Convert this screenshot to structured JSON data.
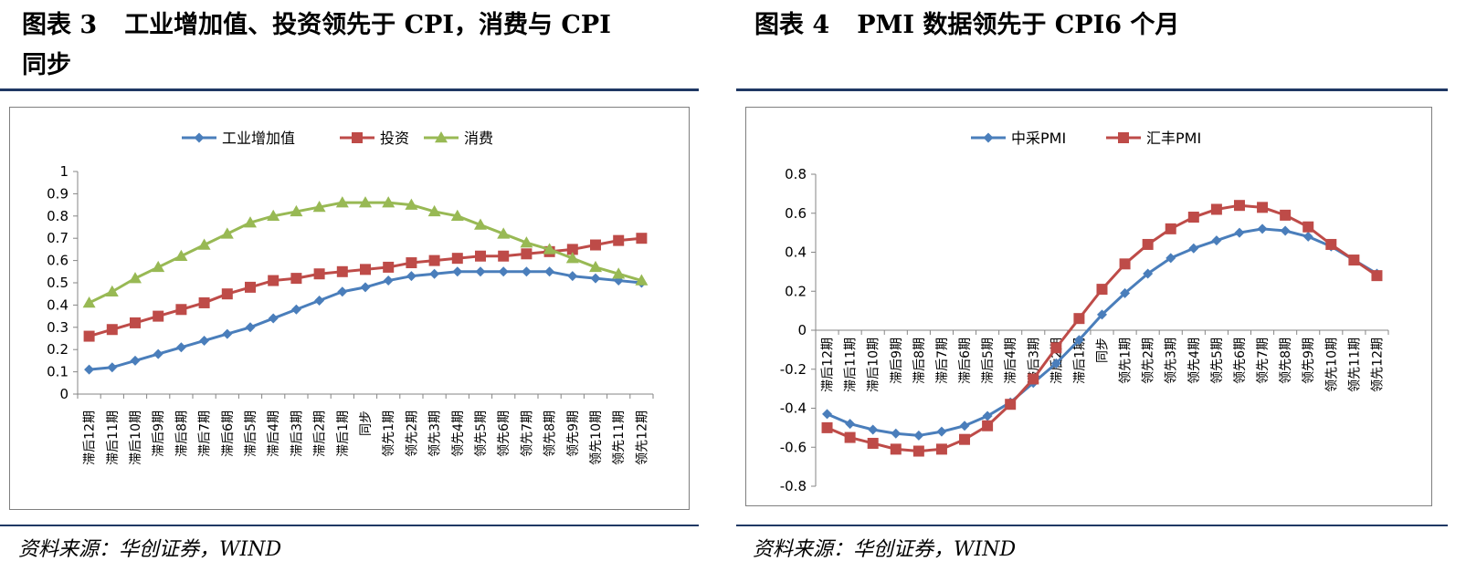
{
  "figures": [
    {
      "number": "图表 3",
      "title": "工业增加值、投资领先于 CPI，消费与 CPI",
      "title_line2": "同步",
      "source": "资料来源：华创证券，WIND"
    },
    {
      "number": "图表 4",
      "title": "PMI 数据领先于 CPI6 个月",
      "source": "资料来源：华创证券，WIND"
    }
  ],
  "chart_data": [
    {
      "type": "line",
      "categories": [
        "滞后12期",
        "滞后11期",
        "滞后10期",
        "滞后9期",
        "滞后8期",
        "滞后7期",
        "滞后6期",
        "滞后5期",
        "滞后4期",
        "滞后3期",
        "滞后2期",
        "滞后1期",
        "同步",
        "领先1期",
        "领先2期",
        "领先3期",
        "领先4期",
        "领先5期",
        "领先6期",
        "领先7期",
        "领先8期",
        "领先9期",
        "领先10期",
        "领先11期",
        "领先12期"
      ],
      "series": [
        {
          "name": "工业增加值",
          "color": "#4a7ebb",
          "marker": "diamond",
          "values": [
            0.11,
            0.12,
            0.15,
            0.18,
            0.21,
            0.24,
            0.27,
            0.3,
            0.34,
            0.38,
            0.42,
            0.46,
            0.48,
            0.51,
            0.53,
            0.54,
            0.55,
            0.55,
            0.55,
            0.55,
            0.55,
            0.53,
            0.52,
            0.51,
            0.5
          ]
        },
        {
          "name": "投资",
          "color": "#be4b48",
          "marker": "square",
          "values": [
            0.26,
            0.29,
            0.32,
            0.35,
            0.38,
            0.41,
            0.45,
            0.48,
            0.51,
            0.52,
            0.54,
            0.55,
            0.56,
            0.57,
            0.59,
            0.6,
            0.61,
            0.62,
            0.62,
            0.63,
            0.64,
            0.65,
            0.67,
            0.69,
            0.7
          ]
        },
        {
          "name": "消费",
          "color": "#98b954",
          "marker": "triangle",
          "values": [
            0.41,
            0.46,
            0.52,
            0.57,
            0.62,
            0.67,
            0.72,
            0.77,
            0.8,
            0.82,
            0.84,
            0.86,
            0.86,
            0.86,
            0.85,
            0.82,
            0.8,
            0.76,
            0.72,
            0.68,
            0.65,
            0.61,
            0.57,
            0.54,
            0.51
          ]
        }
      ],
      "ylim": [
        0,
        1
      ],
      "yticks": [
        "0",
        "0.1",
        "0.2",
        "0.3",
        "0.4",
        "0.5",
        "0.6",
        "0.7",
        "0.8",
        "0.9",
        "1"
      ],
      "legend": "top"
    },
    {
      "type": "line",
      "categories": [
        "滞后12期",
        "滞后11期",
        "滞后10期",
        "滞后9期",
        "滞后8期",
        "滞后7期",
        "滞后6期",
        "滞后5期",
        "滞后4期",
        "滞后3期",
        "滞后2期",
        "滞后1期",
        "同步",
        "领先1期",
        "领先2期",
        "领先3期",
        "领先4期",
        "领先5期",
        "领先6期",
        "领先7期",
        "领先8期",
        "领先9期",
        "领先10期",
        "领先11期",
        "领先12期"
      ],
      "series": [
        {
          "name": "中采PMI",
          "color": "#4a7ebb",
          "marker": "diamond",
          "values": [
            -0.43,
            -0.48,
            -0.51,
            -0.53,
            -0.54,
            -0.52,
            -0.49,
            -0.44,
            -0.37,
            -0.27,
            -0.17,
            -0.05,
            0.08,
            0.19,
            0.29,
            0.37,
            0.42,
            0.46,
            0.5,
            0.52,
            0.51,
            0.48,
            0.43,
            0.36,
            0.29
          ]
        },
        {
          "name": "汇丰PMI",
          "color": "#be4b48",
          "marker": "square",
          "values": [
            -0.5,
            -0.55,
            -0.58,
            -0.61,
            -0.62,
            -0.61,
            -0.56,
            -0.49,
            -0.38,
            -0.25,
            -0.09,
            0.06,
            0.21,
            0.34,
            0.44,
            0.52,
            0.58,
            0.62,
            0.64,
            0.63,
            0.59,
            0.53,
            0.44,
            0.36,
            0.28
          ]
        }
      ],
      "ylim": [
        -0.8,
        0.8
      ],
      "yticks": [
        "-0.8",
        "-0.6",
        "-0.4",
        "-0.2",
        "0",
        "0.2",
        "0.4",
        "0.6",
        "0.8"
      ],
      "legend": "top"
    }
  ]
}
